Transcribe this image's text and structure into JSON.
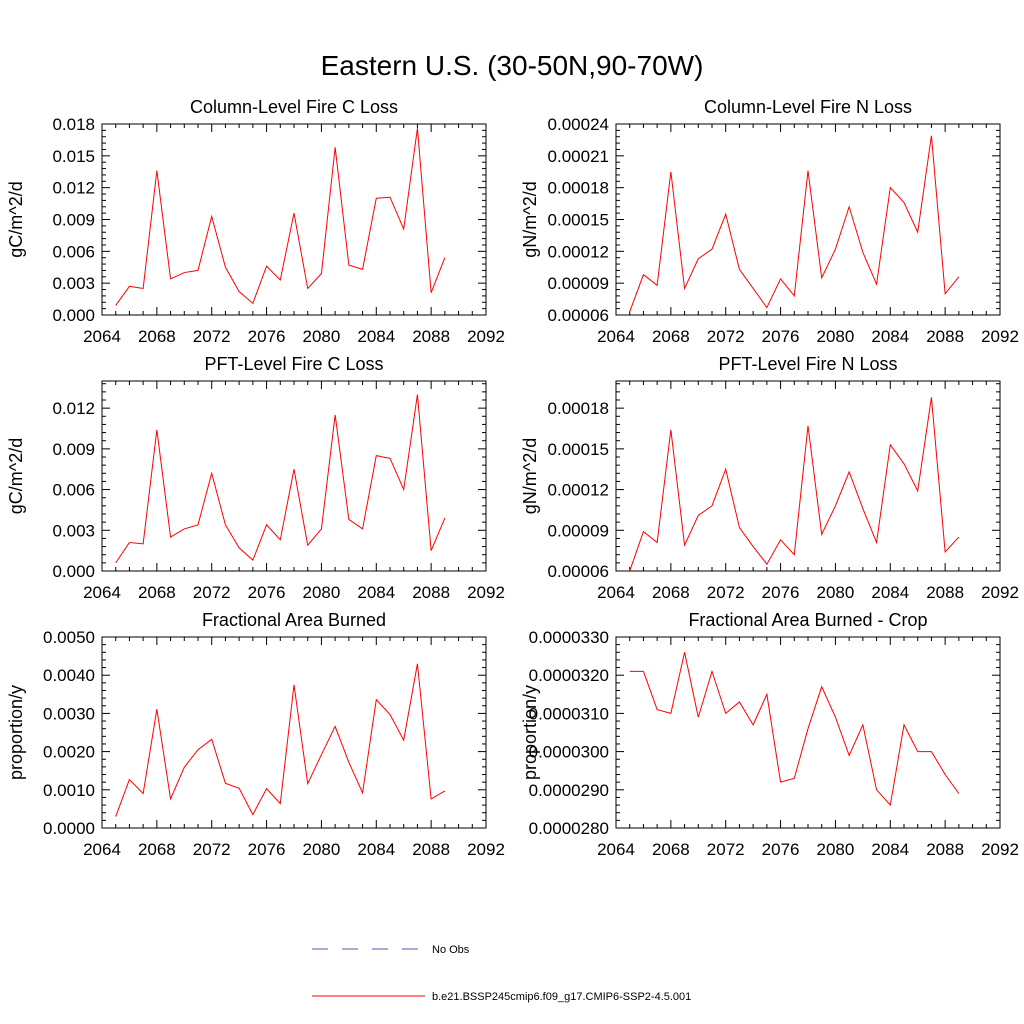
{
  "figure_title": "Eastern U.S. (30-50N,90-70W)",
  "legend": {
    "placement": "bottom-center",
    "entries": [
      {
        "label": "No Obs",
        "color": "#5555aa",
        "style": "dashed"
      },
      {
        "label": "b.e21.BSSP245cmip6.f09_g17.CMIP6-SSP2-4.5.001",
        "color": "#ff0000",
        "style": "solid"
      }
    ]
  },
  "chart_data": [
    {
      "type": "line",
      "title": "Column-Level Fire C Loss",
      "ylabel": "gC/m^2/d",
      "xlim": [
        2064,
        2092
      ],
      "ylim": [
        0.0,
        0.018
      ],
      "xticks": [
        "2064",
        "2068",
        "2072",
        "2076",
        "2080",
        "2084",
        "2088",
        "2092"
      ],
      "yticks": [
        "0.000",
        "0.003",
        "0.006",
        "0.009",
        "0.012",
        "0.015",
        "0.018"
      ],
      "grid": false,
      "x": [
        2065,
        2066,
        2067,
        2068,
        2069,
        2070,
        2071,
        2072,
        2073,
        2074,
        2075,
        2076,
        2077,
        2078,
        2079,
        2080,
        2081,
        2082,
        2083,
        2084,
        2085,
        2086,
        2087,
        2088,
        2089
      ],
      "series": [
        {
          "color": "#ff0000",
          "values": [
            0.0009,
            0.0027,
            0.0025,
            0.0136,
            0.0034,
            0.004,
            0.0042,
            0.0093,
            0.0045,
            0.0022,
            0.0011,
            0.0046,
            0.0033,
            0.0096,
            0.0025,
            0.0039,
            0.0158,
            0.0047,
            0.0043,
            0.011,
            0.0111,
            0.0081,
            0.0176,
            0.0021,
            0.0054
          ]
        }
      ]
    },
    {
      "type": "line",
      "title": "Column-Level Fire N Loss",
      "ylabel": "gN/m^2/d",
      "xlim": [
        2064,
        2092
      ],
      "ylim": [
        6e-05,
        0.00024
      ],
      "xticks": [
        "2064",
        "2068",
        "2072",
        "2076",
        "2080",
        "2084",
        "2088",
        "2092"
      ],
      "yticks": [
        "0.00006",
        "0.00009",
        "0.00012",
        "0.00015",
        "0.00018",
        "0.00021",
        "0.00024"
      ],
      "grid": false,
      "x": [
        2065,
        2066,
        2067,
        2068,
        2069,
        2070,
        2071,
        2072,
        2073,
        2074,
        2075,
        2076,
        2077,
        2078,
        2079,
        2080,
        2081,
        2082,
        2083,
        2084,
        2085,
        2086,
        2087,
        2088,
        2089
      ],
      "series": [
        {
          "color": "#ff0000",
          "values": [
            6.3e-05,
            9.8e-05,
            8.8e-05,
            0.000195,
            8.5e-05,
            0.000113,
            0.000122,
            0.000155,
            0.000103,
            8.5e-05,
            6.7e-05,
            9.4e-05,
            7.8e-05,
            0.000196,
            9.5e-05,
            0.000122,
            0.000162,
            0.000119,
            8.9e-05,
            0.00018,
            0.000166,
            0.000138,
            0.000229,
            8e-05,
            9.6e-05
          ]
        }
      ]
    },
    {
      "type": "line",
      "title": "PFT-Level Fire C Loss",
      "ylabel": "gC/m^2/d",
      "xlim": [
        2064,
        2092
      ],
      "ylim": [
        0.0,
        0.014
      ],
      "xticks": [
        "2064",
        "2068",
        "2072",
        "2076",
        "2080",
        "2084",
        "2088",
        "2092"
      ],
      "yticks": [
        "0.000",
        "0.003",
        "0.006",
        "0.009",
        "0.012"
      ],
      "grid": false,
      "x": [
        2065,
        2066,
        2067,
        2068,
        2069,
        2070,
        2071,
        2072,
        2073,
        2074,
        2075,
        2076,
        2077,
        2078,
        2079,
        2080,
        2081,
        2082,
        2083,
        2084,
        2085,
        2086,
        2087,
        2088,
        2089
      ],
      "series": [
        {
          "color": "#ff0000",
          "values": [
            0.0006,
            0.0021,
            0.002,
            0.0104,
            0.0025,
            0.0031,
            0.0034,
            0.0072,
            0.0034,
            0.0017,
            0.0008,
            0.0034,
            0.0023,
            0.0075,
            0.0019,
            0.0031,
            0.0115,
            0.0038,
            0.0031,
            0.0085,
            0.0083,
            0.006,
            0.013,
            0.0015,
            0.0039
          ]
        }
      ]
    },
    {
      "type": "line",
      "title": "PFT-Level Fire N Loss",
      "ylabel": "gN/m^2/d",
      "xlim": [
        2064,
        2092
      ],
      "ylim": [
        6e-05,
        0.0002
      ],
      "xticks": [
        "2064",
        "2068",
        "2072",
        "2076",
        "2080",
        "2084",
        "2088",
        "2092"
      ],
      "yticks": [
        "0.00006",
        "0.00009",
        "0.00012",
        "0.00015",
        "0.00018"
      ],
      "grid": false,
      "x": [
        2065,
        2066,
        2067,
        2068,
        2069,
        2070,
        2071,
        2072,
        2073,
        2074,
        2075,
        2076,
        2077,
        2078,
        2079,
        2080,
        2081,
        2082,
        2083,
        2084,
        2085,
        2086,
        2087,
        2088,
        2089
      ],
      "series": [
        {
          "color": "#ff0000",
          "values": [
            6e-05,
            8.9e-05,
            8.1e-05,
            0.000164,
            7.9e-05,
            0.000101,
            0.000108,
            0.000135,
            9.2e-05,
            7.8e-05,
            6.5e-05,
            8.3e-05,
            7.2e-05,
            0.000167,
            8.7e-05,
            0.000108,
            0.000133,
            0.000106,
            8.1e-05,
            0.000153,
            0.000139,
            0.000119,
            0.000188,
            7.4e-05,
            8.5e-05
          ]
        }
      ]
    },
    {
      "type": "line",
      "title": "Fractional Area Burned",
      "ylabel": "proportion/y",
      "xlim": [
        2064,
        2092
      ],
      "ylim": [
        0.0,
        0.005
      ],
      "xticks": [
        "2064",
        "2068",
        "2072",
        "2076",
        "2080",
        "2084",
        "2088",
        "2092"
      ],
      "yticks": [
        "0.0000",
        "0.0010",
        "0.0020",
        "0.0030",
        "0.0040",
        "0.0050"
      ],
      "grid": false,
      "x": [
        2065,
        2066,
        2067,
        2068,
        2069,
        2070,
        2071,
        2072,
        2073,
        2074,
        2075,
        2076,
        2077,
        2078,
        2079,
        2080,
        2081,
        2082,
        2083,
        2084,
        2085,
        2086,
        2087,
        2088,
        2089
      ],
      "series": [
        {
          "color": "#ff0000",
          "values": [
            0.0003,
            0.00127,
            0.0009,
            0.00311,
            0.00076,
            0.00159,
            0.00205,
            0.00232,
            0.00117,
            0.00104,
            0.00035,
            0.00103,
            0.00064,
            0.00375,
            0.00116,
            0.00192,
            0.00266,
            0.00172,
            0.00092,
            0.00336,
            0.00297,
            0.0023,
            0.0043,
            0.00076,
            0.00097
          ]
        }
      ]
    },
    {
      "type": "line",
      "title": "Fractional Area Burned - Crop",
      "ylabel": "proportion/y",
      "xlim": [
        2064,
        2092
      ],
      "ylim": [
        2.8e-05,
        3.3e-05
      ],
      "xticks": [
        "2064",
        "2068",
        "2072",
        "2076",
        "2080",
        "2084",
        "2088",
        "2092"
      ],
      "yticks": [
        "0.0000280",
        "0.0000290",
        "0.0000300",
        "0.0000310",
        "0.0000320",
        "0.0000330"
      ],
      "grid": false,
      "x": [
        2065,
        2066,
        2067,
        2068,
        2069,
        2070,
        2071,
        2072,
        2073,
        2074,
        2075,
        2076,
        2077,
        2078,
        2079,
        2080,
        2081,
        2082,
        2083,
        2084,
        2085,
        2086,
        2087,
        2088,
        2089
      ],
      "series": [
        {
          "color": "#ff0000",
          "values": [
            3.21e-05,
            3.21e-05,
            3.11e-05,
            3.1e-05,
            3.26e-05,
            3.09e-05,
            3.21e-05,
            3.1e-05,
            3.13e-05,
            3.07e-05,
            3.15e-05,
            2.92e-05,
            2.93e-05,
            3.06e-05,
            3.17e-05,
            3.09e-05,
            2.99e-05,
            3.07e-05,
            2.9e-05,
            2.86e-05,
            3.07e-05,
            3e-05,
            3e-05,
            2.94e-05,
            2.89e-05
          ]
        }
      ]
    }
  ]
}
